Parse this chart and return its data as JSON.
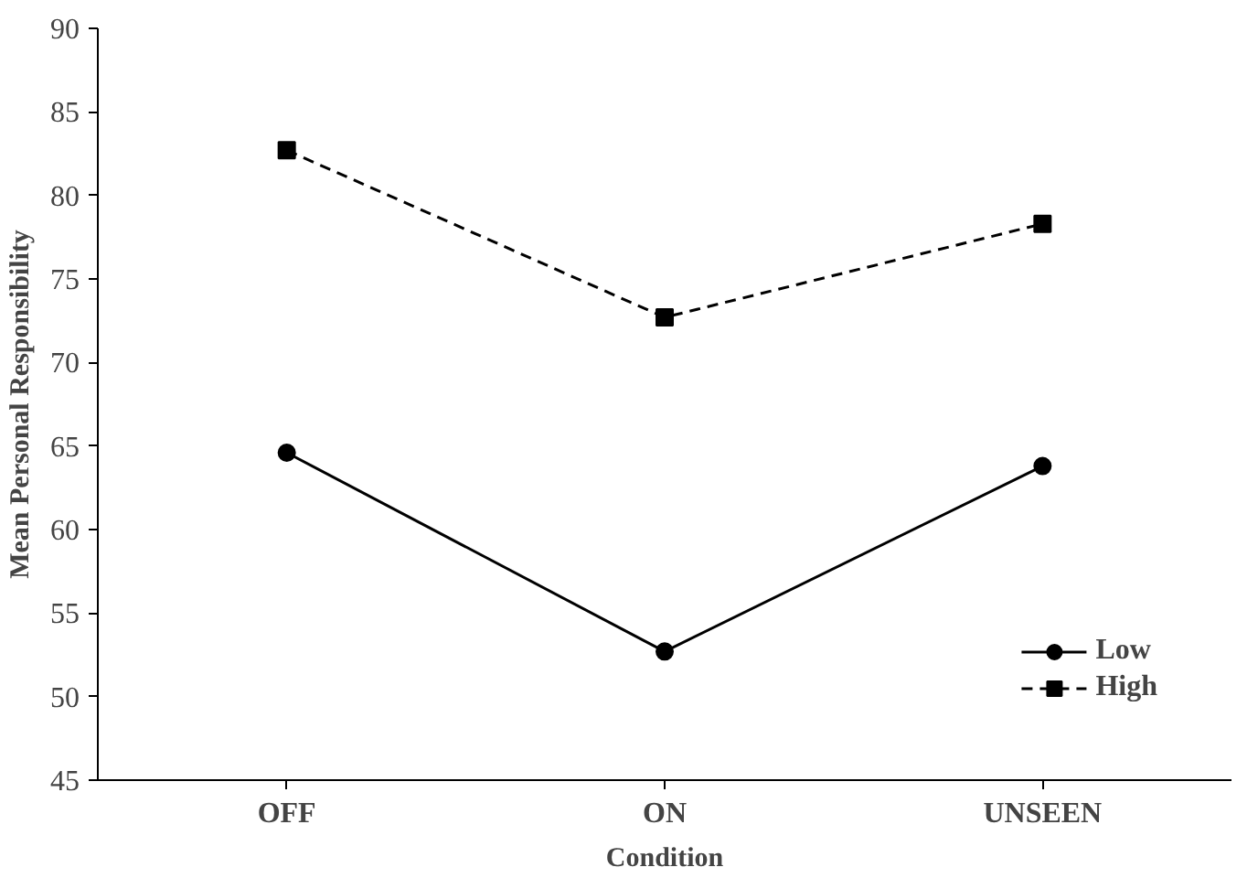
{
  "chart_data": {
    "type": "line",
    "xlabel": "Condition",
    "ylabel": "Mean Personal Responsibility",
    "categories": [
      "OFF",
      "ON",
      "UNSEEN"
    ],
    "series": [
      {
        "name": "Low",
        "color": "#000000",
        "values": [
          64.6,
          52.7,
          63.8
        ],
        "marker": "circle",
        "line_style": "solid"
      },
      {
        "name": "High",
        "color": "#000000",
        "values": [
          82.7,
          72.7,
          78.3
        ],
        "marker": "square",
        "line_style": "dashed"
      }
    ],
    "ylim": [
      45,
      90
    ],
    "yticks": [
      45,
      50,
      55,
      60,
      65,
      70,
      75,
      80,
      85,
      90
    ],
    "grid": false,
    "legend": "bottom right"
  }
}
